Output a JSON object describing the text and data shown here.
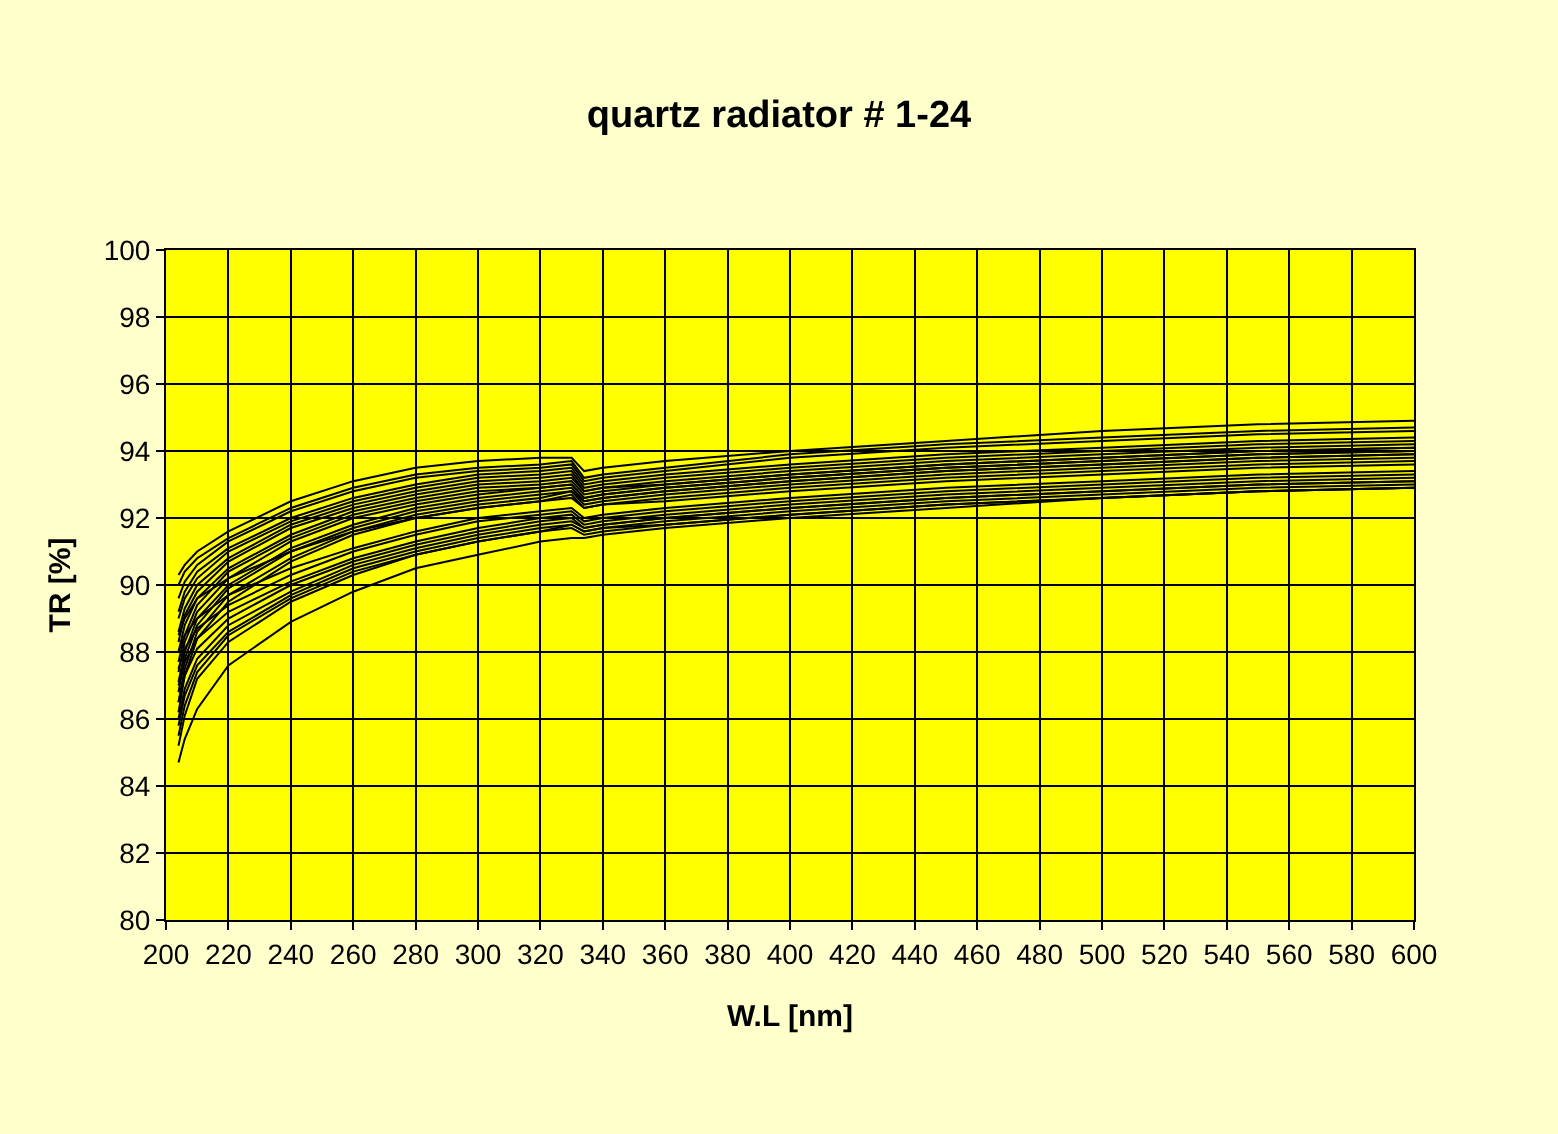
{
  "chart_data": {
    "type": "line",
    "title": "quartz radiator # 1-24",
    "xlabel": "W.L [nm]",
    "ylabel": "TR [%]",
    "x": [
      204,
      206,
      210,
      220,
      240,
      260,
      280,
      300,
      320,
      330,
      334,
      340,
      360,
      400,
      450,
      500,
      550,
      600
    ],
    "xlim": [
      200,
      600
    ],
    "xticks": [
      200,
      220,
      240,
      260,
      280,
      300,
      320,
      340,
      360,
      380,
      400,
      420,
      440,
      460,
      480,
      500,
      520,
      540,
      560,
      580,
      600
    ],
    "ylim": [
      80,
      100
    ],
    "yticks": [
      80,
      82,
      84,
      86,
      88,
      90,
      92,
      94,
      96,
      98,
      100
    ],
    "grid": true,
    "marker": "none",
    "line_style": "solid",
    "series": [
      {
        "color": "#000000",
        "values": [
          90.3,
          90.6,
          91.0,
          91.6,
          92.5,
          93.1,
          93.5,
          93.7,
          93.8,
          93.8,
          93.4,
          93.5,
          93.7,
          94.0,
          94.3,
          94.6,
          94.8,
          94.9
        ]
      },
      {
        "color": "#000000",
        "values": [
          90.0,
          90.4,
          90.8,
          91.4,
          92.3,
          92.9,
          93.3,
          93.5,
          93.6,
          93.7,
          93.2,
          93.3,
          93.5,
          93.9,
          94.2,
          94.4,
          94.6,
          94.7
        ]
      },
      {
        "color": "#000000",
        "values": [
          89.6,
          90.1,
          90.6,
          91.3,
          92.2,
          92.8,
          93.2,
          93.4,
          93.5,
          93.6,
          93.1,
          93.2,
          93.4,
          93.8,
          94.1,
          94.3,
          94.5,
          94.6
        ]
      },
      {
        "color": "#000000",
        "values": [
          89.2,
          89.8,
          90.4,
          91.1,
          92.0,
          92.6,
          93.0,
          93.3,
          93.4,
          93.5,
          93.0,
          93.1,
          93.3,
          93.6,
          93.9,
          94.1,
          94.3,
          94.4
        ]
      },
      {
        "color": "#000000",
        "values": [
          89.0,
          89.6,
          90.2,
          91.0,
          91.9,
          92.5,
          92.9,
          93.2,
          93.3,
          93.4,
          92.9,
          93.0,
          93.2,
          93.5,
          93.8,
          94.0,
          94.2,
          94.3
        ]
      },
      {
        "color": "#000000",
        "values": [
          88.6,
          89.3,
          90.0,
          90.8,
          91.8,
          92.4,
          92.8,
          93.1,
          93.2,
          93.3,
          92.8,
          92.9,
          93.1,
          93.4,
          93.7,
          93.9,
          94.1,
          94.2
        ]
      },
      {
        "color": "#000000",
        "values": [
          88.3,
          89.1,
          89.8,
          90.7,
          91.7,
          92.3,
          92.7,
          93.0,
          93.1,
          93.2,
          92.8,
          92.9,
          93.0,
          93.3,
          93.6,
          93.8,
          94.0,
          94.1
        ]
      },
      {
        "color": "#000000",
        "values": [
          88.0,
          88.8,
          89.6,
          90.5,
          91.5,
          92.2,
          92.6,
          92.9,
          93.0,
          93.1,
          92.7,
          92.8,
          93.0,
          93.3,
          93.6,
          93.8,
          94.0,
          94.1
        ]
      },
      {
        "color": "#000000",
        "values": [
          87.7,
          88.5,
          89.4,
          90.4,
          91.4,
          92.1,
          92.5,
          92.8,
          92.9,
          93.0,
          92.6,
          92.7,
          92.9,
          93.2,
          93.5,
          93.7,
          93.9,
          94.0
        ]
      },
      {
        "color": "#000000",
        "values": [
          87.4,
          88.3,
          89.2,
          90.2,
          91.3,
          92.0,
          92.4,
          92.7,
          92.9,
          93.0,
          92.6,
          92.7,
          92.9,
          93.2,
          93.5,
          93.7,
          93.9,
          94.0
        ]
      },
      {
        "color": "#000000",
        "values": [
          87.1,
          88.0,
          89.0,
          90.0,
          91.1,
          91.8,
          92.3,
          92.6,
          92.8,
          92.9,
          92.5,
          92.6,
          92.8,
          93.1,
          93.4,
          93.6,
          93.8,
          93.9
        ]
      },
      {
        "color": "#000000",
        "values": [
          86.8,
          87.8,
          88.8,
          89.9,
          91.0,
          91.7,
          92.2,
          92.5,
          92.7,
          92.8,
          92.5,
          92.6,
          92.8,
          93.1,
          93.4,
          93.6,
          93.8,
          93.9
        ]
      },
      {
        "color": "#000000",
        "values": [
          86.5,
          87.5,
          88.6,
          89.7,
          90.8,
          91.6,
          92.1,
          92.4,
          92.6,
          92.8,
          92.4,
          92.5,
          92.7,
          93.0,
          93.3,
          93.5,
          93.7,
          93.8
        ]
      },
      {
        "color": "#000000",
        "values": [
          86.2,
          87.3,
          88.4,
          89.5,
          90.7,
          91.5,
          92.0,
          92.3,
          92.5,
          92.7,
          92.3,
          92.4,
          92.6,
          92.9,
          93.2,
          93.4,
          93.6,
          93.7
        ]
      },
      {
        "color": "#000000",
        "values": [
          88.5,
          89.0,
          89.6,
          90.2,
          91.0,
          91.6,
          92.0,
          92.3,
          92.5,
          92.6,
          92.3,
          92.4,
          92.5,
          92.8,
          93.1,
          93.3,
          93.5,
          93.6
        ]
      },
      {
        "color": "#000000",
        "values": [
          88.0,
          88.5,
          89.0,
          89.7,
          90.5,
          91.1,
          91.6,
          92.0,
          92.2,
          92.3,
          92.0,
          92.1,
          92.3,
          92.6,
          92.9,
          93.1,
          93.3,
          93.4
        ]
      },
      {
        "color": "#000000",
        "values": [
          87.5,
          88.1,
          88.7,
          89.4,
          90.3,
          91.0,
          91.5,
          91.9,
          92.1,
          92.2,
          91.9,
          92.0,
          92.2,
          92.5,
          92.8,
          93.0,
          93.2,
          93.3
        ]
      },
      {
        "color": "#000000",
        "values": [
          87.0,
          87.7,
          88.4,
          89.2,
          90.1,
          90.8,
          91.3,
          91.7,
          92.0,
          92.1,
          91.8,
          91.9,
          92.1,
          92.4,
          92.7,
          92.9,
          93.1,
          93.2
        ]
      },
      {
        "color": "#000000",
        "values": [
          86.5,
          87.3,
          88.1,
          89.0,
          90.0,
          90.7,
          91.2,
          91.6,
          91.9,
          92.0,
          91.7,
          91.8,
          92.0,
          92.3,
          92.6,
          92.8,
          93.0,
          93.1
        ]
      },
      {
        "color": "#000000",
        "values": [
          86.0,
          86.9,
          87.8,
          88.8,
          89.8,
          90.6,
          91.1,
          91.5,
          91.8,
          91.9,
          91.7,
          91.8,
          92.0,
          92.3,
          92.6,
          92.8,
          93.0,
          93.1
        ]
      },
      {
        "color": "#000000",
        "values": [
          85.8,
          86.7,
          87.6,
          88.6,
          89.7,
          90.5,
          91.0,
          91.4,
          91.7,
          91.8,
          91.6,
          91.7,
          91.9,
          92.2,
          92.5,
          92.7,
          92.9,
          93.0
        ]
      },
      {
        "color": "#000000",
        "values": [
          85.5,
          86.4,
          87.4,
          88.5,
          89.6,
          90.4,
          90.9,
          91.3,
          91.6,
          91.8,
          91.6,
          91.7,
          91.8,
          92.1,
          92.4,
          92.6,
          92.8,
          92.9
        ]
      },
      {
        "color": "#000000",
        "values": [
          85.2,
          86.1,
          87.2,
          88.3,
          89.5,
          90.3,
          90.9,
          91.3,
          91.6,
          91.7,
          91.5,
          91.6,
          91.8,
          92.1,
          92.4,
          92.6,
          92.8,
          92.9
        ]
      },
      {
        "color": "#000000",
        "values": [
          84.7,
          85.4,
          86.3,
          87.6,
          88.9,
          89.8,
          90.5,
          90.9,
          91.3,
          91.4,
          91.4,
          91.5,
          91.7,
          92.0,
          92.3,
          92.6,
          92.8,
          92.9
        ]
      }
    ]
  }
}
